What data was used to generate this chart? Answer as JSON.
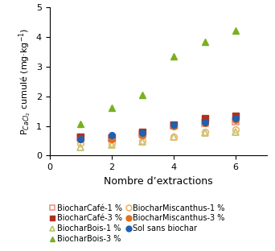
{
  "x": [
    1,
    2,
    3,
    4,
    5,
    6
  ],
  "series": {
    "BiocharCafe_1": [
      0.62,
      0.58,
      0.72,
      1.02,
      1.1,
      1.15
    ],
    "BiocharCafe_3": [
      0.65,
      0.6,
      0.8,
      1.05,
      1.27,
      1.35
    ],
    "BiocharBois_1": [
      0.28,
      0.37,
      0.48,
      0.65,
      0.78,
      0.8
    ],
    "BiocharBois_3": [
      1.08,
      1.62,
      2.05,
      3.35,
      3.85,
      4.23
    ],
    "BiocharMiscanthus_1": [
      0.42,
      0.42,
      0.5,
      0.65,
      0.8,
      0.88
    ],
    "BiocharMiscanthus_3": [
      0.55,
      0.55,
      0.7,
      1.0,
      1.1,
      1.2
    ],
    "SolSansBiochar": [
      0.55,
      0.68,
      0.78,
      1.05,
      1.12,
      1.25
    ]
  },
  "colors": {
    "BiocharCafe_1": "#e8a090",
    "BiocharCafe_3": "#b03020",
    "BiocharBois_1": "#b8c870",
    "BiocharBois_3": "#7ab020",
    "BiocharMiscanthus_1": "#f0b870",
    "BiocharMiscanthus_3": "#e07020",
    "SolSansBiochar": "#2060b0"
  },
  "ylabel": "P$_{CaCl_2}$ cumulé (mg·kg$^{-1}$)",
  "xlabel": "Nombre d’extractions",
  "ylim": [
    0,
    5
  ],
  "xlim": [
    0,
    7
  ],
  "yticks": [
    0,
    1,
    2,
    3,
    4,
    5
  ],
  "xticks": [
    0,
    2,
    4,
    6
  ],
  "legend_labels_col1": [
    "BiocharCafé-1 %",
    "BiocharBois-1 %",
    "BiocharMiscanthus-1 %",
    "Sol sans biochar"
  ],
  "legend_labels_col2": [
    "BiocharCafé-3 %",
    "BiocharBois-3 %",
    "BiocharMiscanthus-3 %"
  ]
}
